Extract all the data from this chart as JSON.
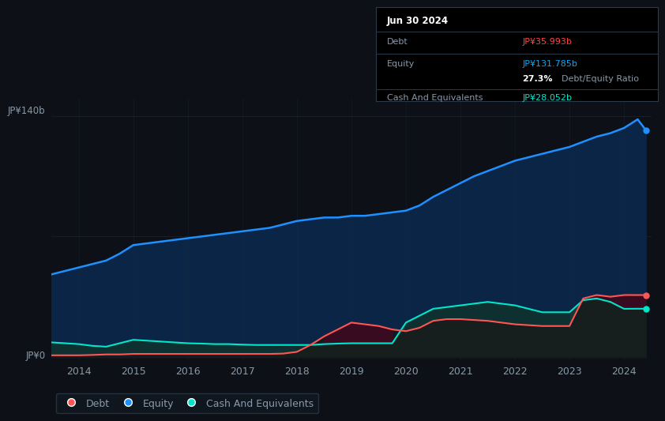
{
  "bg_color": "#0d1117",
  "plot_bg_color": "#0d1117",
  "title_box": {
    "date": "Jun 30 2024",
    "debt_label": "Debt",
    "debt_value": "JP¥35.993b",
    "debt_color": "#ff4444",
    "equity_label": "Equity",
    "equity_value": "JP¥131.785b",
    "equity_color": "#00aaff",
    "ratio_bold": "27.3%",
    "ratio_text": "Debt/Equity Ratio",
    "cash_label": "Cash And Equivalents",
    "cash_value": "JP¥28.052b",
    "cash_color": "#00e5cc"
  },
  "ylabel_top": "JP¥140b",
  "ylabel_bottom": "JP¥0",
  "x_ticks": [
    2014,
    2015,
    2016,
    2017,
    2018,
    2019,
    2020,
    2021,
    2022,
    2023,
    2024
  ],
  "years": [
    2013.5,
    2013.75,
    2014.0,
    2014.25,
    2014.5,
    2014.75,
    2015.0,
    2015.25,
    2015.5,
    2015.75,
    2016.0,
    2016.25,
    2016.5,
    2016.75,
    2017.0,
    2017.25,
    2017.5,
    2017.75,
    2018.0,
    2018.25,
    2018.5,
    2018.75,
    2019.0,
    2019.25,
    2019.5,
    2019.75,
    2020.0,
    2020.25,
    2020.5,
    2020.75,
    2021.0,
    2021.25,
    2021.5,
    2021.75,
    2022.0,
    2022.25,
    2022.5,
    2022.75,
    2023.0,
    2023.25,
    2023.5,
    2023.75,
    2024.0,
    2024.25,
    2024.4
  ],
  "equity": [
    48,
    50,
    52,
    54,
    56,
    60,
    65,
    66,
    67,
    68,
    69,
    70,
    71,
    72,
    73,
    74,
    75,
    77,
    79,
    80,
    81,
    81,
    82,
    82,
    83,
    84,
    85,
    88,
    93,
    97,
    101,
    105,
    108,
    111,
    114,
    116,
    118,
    120,
    122,
    125,
    128,
    130,
    133,
    138,
    131.785
  ],
  "debt": [
    1.0,
    1.0,
    1.0,
    1.2,
    1.5,
    1.5,
    1.8,
    1.8,
    1.8,
    1.8,
    1.8,
    1.8,
    1.8,
    1.8,
    1.8,
    1.8,
    1.8,
    2.0,
    3.0,
    7.0,
    12.0,
    16.0,
    20.0,
    19.0,
    18.0,
    16.0,
    15.0,
    17.0,
    21.0,
    22.0,
    22.0,
    21.5,
    21.0,
    20.0,
    19.0,
    18.5,
    18.0,
    18.0,
    18.0,
    34.0,
    36.0,
    35.0,
    36.0,
    35.993,
    35.993
  ],
  "cash": [
    8.5,
    8.0,
    7.5,
    6.5,
    6.0,
    8.0,
    10.0,
    9.5,
    9.0,
    8.5,
    8.0,
    7.8,
    7.5,
    7.5,
    7.2,
    7.0,
    7.0,
    7.0,
    7.0,
    7.0,
    7.5,
    7.8,
    8.0,
    8.0,
    8.0,
    8.0,
    20.0,
    24.0,
    28.0,
    29.0,
    30.0,
    31.0,
    32.0,
    31.0,
    30.0,
    28.0,
    26.0,
    26.0,
    26.0,
    33.0,
    34.0,
    32.0,
    28.0,
    28.052,
    28.052
  ],
  "equity_color": "#1e90ff",
  "equity_fill": "#0a2545",
  "debt_color": "#ff5555",
  "cash_color": "#00e5cc",
  "grid_color": "#1e2d40",
  "text_color": "#8899aa",
  "legend_box_color": "#111820",
  "legend_border_color": "#2a3a4a",
  "ymax": 150,
  "ymin": -2,
  "xmin": 2013.5,
  "xmax": 2024.5
}
